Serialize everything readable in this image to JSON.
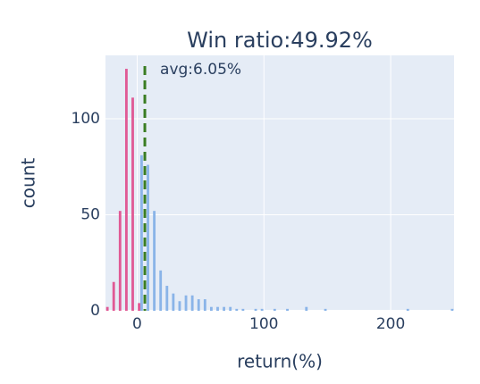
{
  "chart_data": {
    "type": "histogram",
    "title": "Win ratio:49.92%",
    "x_label": "return(%)",
    "y_label": "count",
    "bins": [
      -25,
      -20,
      -15,
      -10,
      -5,
      0,
      5,
      10,
      15,
      20,
      25,
      30,
      35,
      40,
      45,
      50,
      55,
      60,
      65,
      70,
      75,
      80,
      85,
      90,
      95,
      100,
      105,
      110,
      115,
      120,
      125,
      130,
      135,
      140,
      145,
      150,
      155,
      160,
      165,
      170,
      175,
      180,
      185,
      190,
      195,
      200,
      205,
      210,
      215,
      220,
      225,
      230,
      235,
      240,
      245,
      250
    ],
    "series": [
      {
        "color": "#e05a95",
        "values": [
          2,
          15,
          52,
          126,
          111,
          4,
          0,
          0,
          0,
          0,
          0,
          0,
          0,
          0,
          0,
          0,
          0,
          0,
          0,
          0,
          0,
          0,
          0,
          0,
          0,
          0,
          0,
          0,
          0,
          0,
          0,
          0,
          0,
          0,
          0,
          0,
          0,
          0,
          0,
          0,
          0,
          0,
          0,
          0,
          0,
          0,
          0,
          0,
          0,
          0,
          0,
          0,
          0,
          0,
          0
        ]
      },
      {
        "color": "#8ab4e8",
        "values": [
          0,
          0,
          0,
          0,
          0,
          81,
          76,
          52,
          21,
          13,
          9,
          5,
          8,
          8,
          6,
          6,
          2,
          2,
          2,
          2,
          1,
          1,
          0,
          1,
          1,
          0,
          1,
          0,
          1,
          0,
          0,
          2,
          0,
          0,
          1,
          0,
          0,
          0,
          0,
          0,
          0,
          0,
          0,
          0,
          0,
          0,
          0,
          1,
          0,
          0,
          0,
          0,
          0,
          0,
          1
        ]
      }
    ],
    "vline": {
      "value": 6.05,
      "label": "avg:6.05%",
      "color": "#3a7d22"
    },
    "xlim": [
      -25,
      250
    ],
    "ylim": [
      0,
      133
    ],
    "xticks": [
      0,
      100,
      200
    ],
    "yticks": [
      0,
      50,
      100
    ],
    "grid": true
  }
}
